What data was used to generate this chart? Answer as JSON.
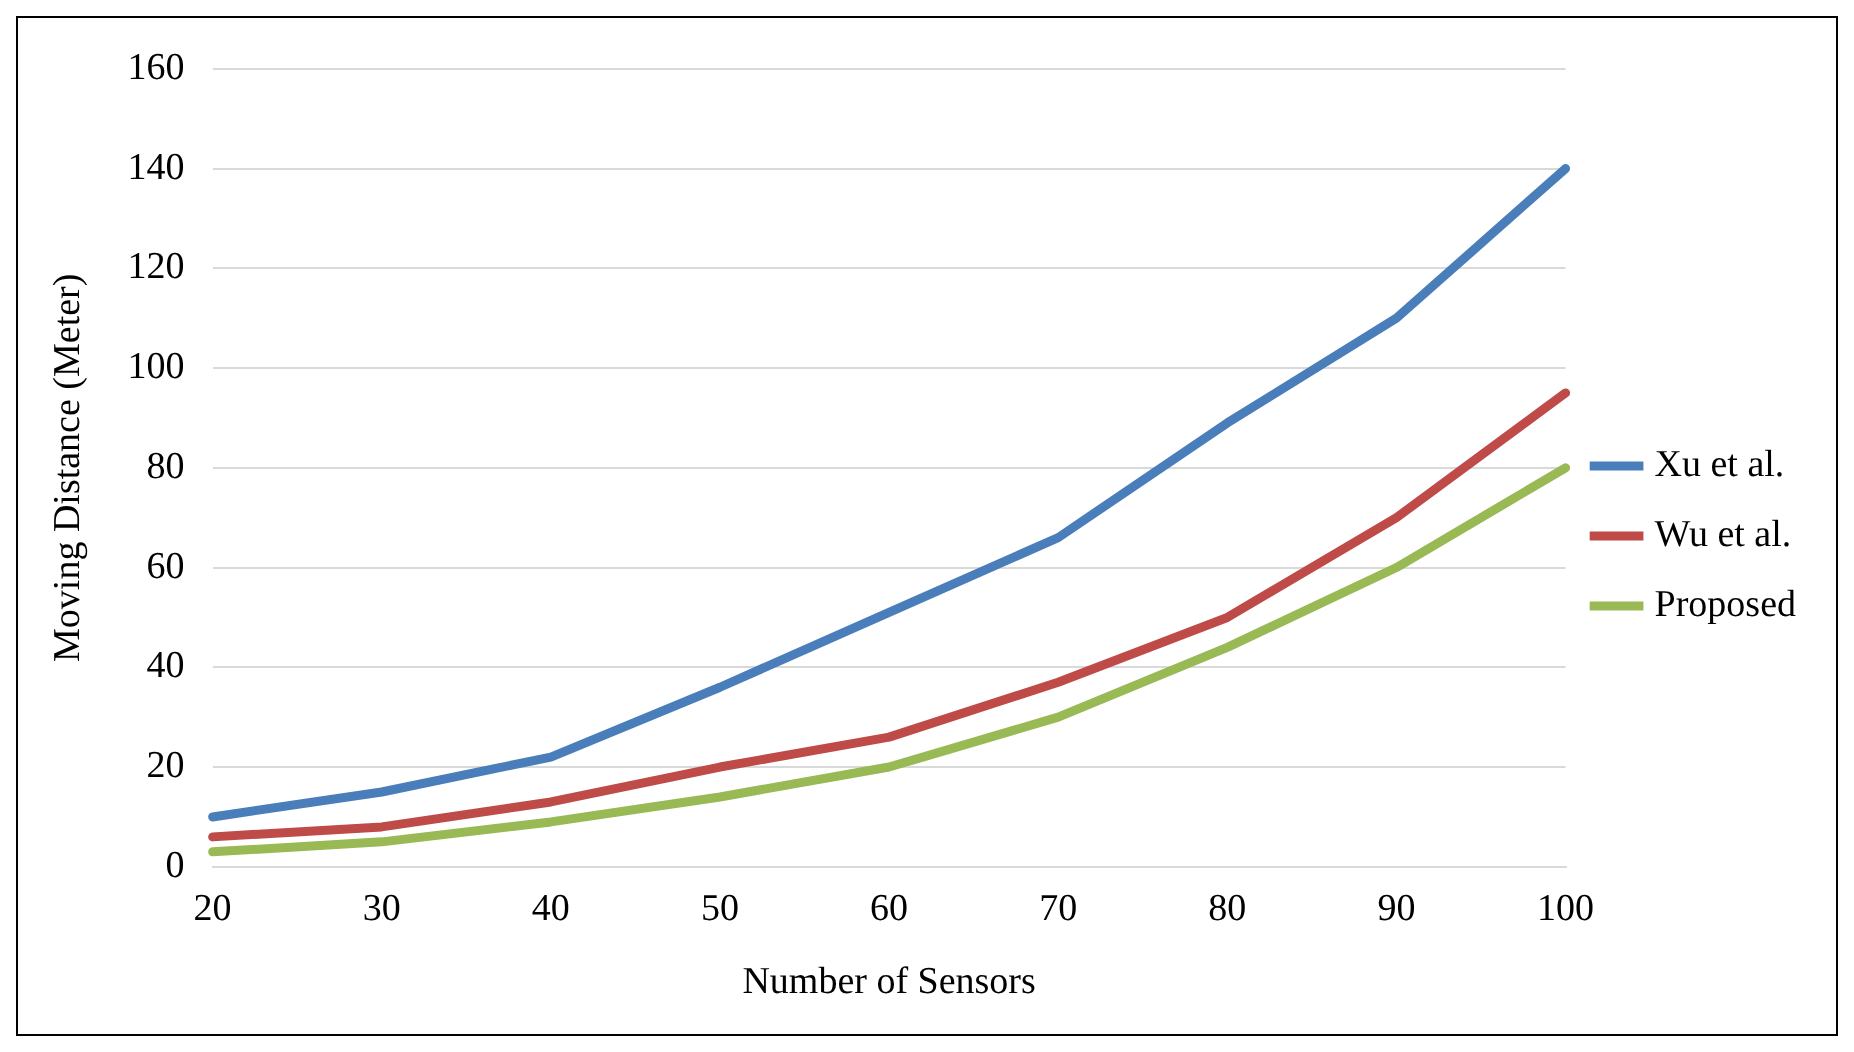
{
  "chart_data": {
    "type": "line",
    "xlabel": "Number of Sensors",
    "ylabel": "Moving Distance (Meter)",
    "categories": [
      "20",
      "30",
      "40",
      "50",
      "60",
      "70",
      "80",
      "90",
      "100"
    ],
    "series": [
      {
        "name": "Xu et al.",
        "color": "#4a7ebb",
        "values": [
          10,
          15,
          22,
          36,
          51,
          66,
          89,
          110,
          140
        ]
      },
      {
        "name": "Wu et al.",
        "color": "#be4b48",
        "values": [
          6,
          8,
          13,
          20,
          26,
          37,
          50,
          70,
          95
        ]
      },
      {
        "name": "Proposed",
        "color": "#98b954",
        "values": [
          3,
          5,
          9,
          14,
          20,
          30,
          44,
          60,
          80
        ]
      }
    ],
    "ylim": [
      0,
      160
    ],
    "yticks": [
      0,
      20,
      40,
      60,
      80,
      100,
      120,
      140,
      160
    ],
    "grid": "y",
    "legend": "right",
    "marker": "none",
    "line_style": "solid"
  }
}
